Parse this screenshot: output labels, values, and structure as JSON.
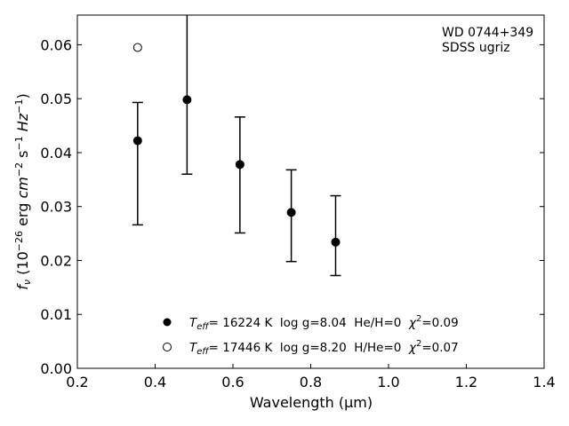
{
  "chart_data": {
    "type": "scatter",
    "xlabel": "Wavelength (μm)",
    "ylabel_main": "f",
    "ylabel_sub": "ν",
    "ylabel_rest": " (10",
    "ylabel_exp1": "−26",
    "ylabel_unit": " erg ",
    "ylabel_cm": "cm",
    "ylabel_exp2": "−2",
    "ylabel_s": " s",
    "ylabel_exp3": "−1",
    "ylabel_hz": " Hz",
    "ylabel_exp4": "−1",
    "ylabel_close": ")",
    "xlim": [
      0.2,
      1.4
    ],
    "ylim": [
      0.0,
      0.0655
    ],
    "xticks": [
      0.2,
      0.4,
      0.6,
      0.8,
      1.0,
      1.2,
      1.4
    ],
    "xtick_labels": [
      "0.2",
      "0.4",
      "0.6",
      "0.8",
      "1.0",
      "1.2",
      "1.4"
    ],
    "yticks": [
      0.0,
      0.01,
      0.02,
      0.03,
      0.04,
      0.05,
      0.06
    ],
    "ytick_labels": [
      "0.00",
      "0.01",
      "0.02",
      "0.03",
      "0.04",
      "0.05",
      "0.06"
    ],
    "annotation_lines": [
      "WD 0744+349",
      "SDSS ugriz"
    ],
    "series": [
      {
        "marker": "filled-circle",
        "legend_teff": "T",
        "legend_teff_sub": "eff",
        "legend_rest": "= 16224 K  log g=8.04  He/H=0  ",
        "legend_chi": "χ",
        "legend_chi_exp": "2",
        "legend_chi_val": "=0.09",
        "points": [
          {
            "x": 0.355,
            "y": 0.0422,
            "yerr_low": 0.0266,
            "yerr_high": 0.0493
          },
          {
            "x": 0.482,
            "y": 0.0498,
            "yerr_low": 0.036,
            "yerr_high": 0.0655
          },
          {
            "x": 0.618,
            "y": 0.0378,
            "yerr_low": 0.0251,
            "yerr_high": 0.0466
          },
          {
            "x": 0.75,
            "y": 0.0289,
            "yerr_low": 0.0198,
            "yerr_high": 0.0368
          },
          {
            "x": 0.864,
            "y": 0.0234,
            "yerr_low": 0.0172,
            "yerr_high": 0.032
          }
        ]
      },
      {
        "marker": "open-circle",
        "legend_teff": "T",
        "legend_teff_sub": "eff",
        "legend_rest": "= 17446 K  log g=8.20  H/He=0  ",
        "legend_chi": "χ",
        "legend_chi_exp": "2",
        "legend_chi_val": "=0.07",
        "points": [
          {
            "x": 0.355,
            "y": 0.0595
          }
        ]
      }
    ]
  }
}
